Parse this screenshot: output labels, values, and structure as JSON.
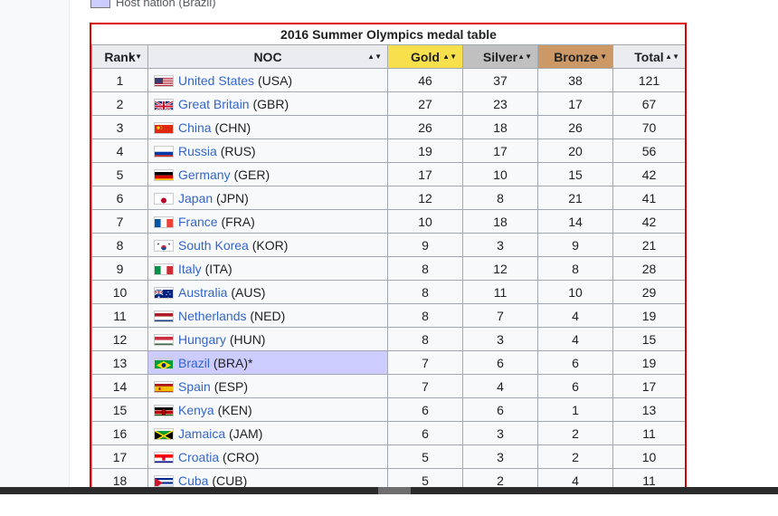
{
  "legend": {
    "label": "Host nation (Brazil)"
  },
  "table": {
    "caption": "2016 Summer Olympics medal table",
    "headers": {
      "rank": "Rank",
      "noc": "NOC",
      "gold": "Gold",
      "silver": "Silver",
      "bronze": "Bronze",
      "total": "Total"
    },
    "rows": [
      {
        "rank": "1",
        "country": "United States",
        "code": "(USA)",
        "gold": "46",
        "silver": "37",
        "bronze": "38",
        "total": "121",
        "flag": "usa-flag-icon"
      },
      {
        "rank": "2",
        "country": "Great Britain",
        "code": "(GBR)",
        "gold": "27",
        "silver": "23",
        "bronze": "17",
        "total": "67",
        "flag": "gbr-flag-icon"
      },
      {
        "rank": "3",
        "country": "China",
        "code": "(CHN)",
        "gold": "26",
        "silver": "18",
        "bronze": "26",
        "total": "70",
        "flag": "chn-flag-icon"
      },
      {
        "rank": "4",
        "country": "Russia",
        "code": "(RUS)",
        "gold": "19",
        "silver": "17",
        "bronze": "20",
        "total": "56",
        "flag": "rus-flag-icon"
      },
      {
        "rank": "5",
        "country": "Germany",
        "code": "(GER)",
        "gold": "17",
        "silver": "10",
        "bronze": "15",
        "total": "42",
        "flag": "ger-flag-icon"
      },
      {
        "rank": "6",
        "country": "Japan",
        "code": "(JPN)",
        "gold": "12",
        "silver": "8",
        "bronze": "21",
        "total": "41",
        "flag": "jpn-flag-icon"
      },
      {
        "rank": "7",
        "country": "France",
        "code": "(FRA)",
        "gold": "10",
        "silver": "18",
        "bronze": "14",
        "total": "42",
        "flag": "fra-flag-icon"
      },
      {
        "rank": "8",
        "country": "South Korea",
        "code": "(KOR)",
        "gold": "9",
        "silver": "3",
        "bronze": "9",
        "total": "21",
        "flag": "kor-flag-icon"
      },
      {
        "rank": "9",
        "country": "Italy",
        "code": "(ITA)",
        "gold": "8",
        "silver": "12",
        "bronze": "8",
        "total": "28",
        "flag": "ita-flag-icon"
      },
      {
        "rank": "10",
        "country": "Australia",
        "code": "(AUS)",
        "gold": "8",
        "silver": "11",
        "bronze": "10",
        "total": "29",
        "flag": "aus-flag-icon"
      },
      {
        "rank": "11",
        "country": "Netherlands",
        "code": "(NED)",
        "gold": "8",
        "silver": "7",
        "bronze": "4",
        "total": "19",
        "flag": "ned-flag-icon"
      },
      {
        "rank": "12",
        "country": "Hungary",
        "code": "(HUN)",
        "gold": "8",
        "silver": "3",
        "bronze": "4",
        "total": "15",
        "flag": "hun-flag-icon"
      },
      {
        "rank": "13",
        "country": "Brazil",
        "code": "(BRA)*",
        "gold": "7",
        "silver": "6",
        "bronze": "6",
        "total": "19",
        "flag": "bra-flag-icon",
        "host": true
      },
      {
        "rank": "14",
        "country": "Spain",
        "code": "(ESP)",
        "gold": "7",
        "silver": "4",
        "bronze": "6",
        "total": "17",
        "flag": "esp-flag-icon"
      },
      {
        "rank": "15",
        "country": "Kenya",
        "code": "(KEN)",
        "gold": "6",
        "silver": "6",
        "bronze": "1",
        "total": "13",
        "flag": "ken-flag-icon"
      },
      {
        "rank": "16",
        "country": "Jamaica",
        "code": "(JAM)",
        "gold": "6",
        "silver": "3",
        "bronze": "2",
        "total": "11",
        "flag": "jam-flag-icon"
      },
      {
        "rank": "17",
        "country": "Croatia",
        "code": "(CRO)",
        "gold": "5",
        "silver": "3",
        "bronze": "2",
        "total": "10",
        "flag": "cro-flag-icon"
      },
      {
        "rank": "18",
        "country": "Cuba",
        "code": "(CUB)",
        "gold": "5",
        "silver": "2",
        "bronze": "4",
        "total": "11",
        "flag": "cub-flag-icon"
      }
    ]
  },
  "colors": {
    "gold": "#f7e04b",
    "silver": "#c0c0c0",
    "bronze": "#cc9966",
    "host": "#ccccff",
    "highlight_border": "#dd0000",
    "link": "#3366cc"
  }
}
